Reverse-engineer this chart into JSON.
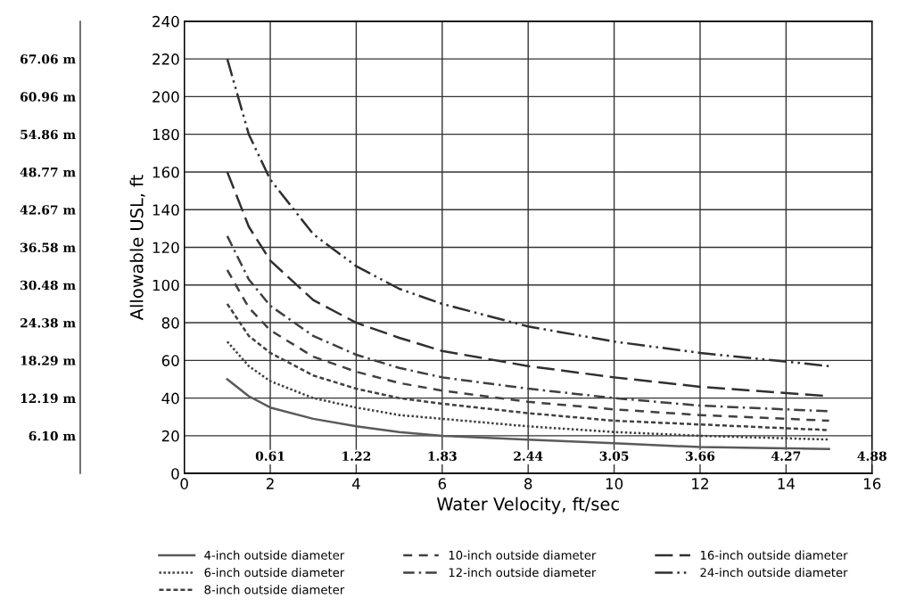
{
  "chart_data": {
    "type": "line",
    "xlabel": "Water Velocity, ft/sec",
    "ylabel": "Allowable USL, ft",
    "x": [
      1,
      1.5,
      2,
      3,
      4,
      5,
      6,
      8,
      10,
      12,
      15
    ],
    "series": [
      {
        "name": "4-inch outside diameter",
        "color": "#5a5a5a",
        "line_style": "solid",
        "values": [
          50,
          41,
          35,
          29,
          25,
          22,
          20,
          18,
          16,
          14,
          13
        ]
      },
      {
        "name": "6-inch outside diameter",
        "color": "#404040",
        "line_style": "dotted",
        "values": [
          70,
          57,
          49,
          40,
          35,
          31,
          29,
          25,
          22,
          20,
          18
        ]
      },
      {
        "name": "8-inch outside diameter",
        "color": "#404040",
        "line_style": "shortdash",
        "values": [
          90,
          73,
          64,
          52,
          45,
          40,
          37,
          32,
          28,
          26,
          23
        ]
      },
      {
        "name": "10-inch outside diameter",
        "color": "#404040",
        "line_style": "dashed",
        "values": [
          108,
          88,
          76,
          62,
          54,
          48,
          44,
          38,
          34,
          31,
          28
        ]
      },
      {
        "name": "12-inch outside diameter",
        "color": "#404040",
        "line_style": "dashdot",
        "values": [
          126,
          103,
          89,
          73,
          63,
          56,
          51,
          45,
          40,
          36,
          33
        ]
      },
      {
        "name": "16-inch outside diameter",
        "color": "#303030",
        "line_style": "longdash",
        "values": [
          160,
          131,
          113,
          92,
          80,
          72,
          65,
          57,
          51,
          46,
          41
        ]
      },
      {
        "name": "24-inch outside diameter",
        "color": "#303030",
        "line_style": "dashdotdot",
        "values": [
          220,
          180,
          156,
          127,
          110,
          98,
          90,
          78,
          70,
          64,
          57
        ]
      }
    ],
    "xlim": [
      0,
      16
    ],
    "xticks": [
      0,
      2,
      4,
      6,
      8,
      10,
      12,
      14,
      16
    ],
    "ylim": [
      0,
      240
    ],
    "yticks": [
      0,
      20,
      40,
      60,
      80,
      100,
      120,
      140,
      160,
      180,
      200,
      220,
      240
    ],
    "y2lim": [
      0,
      73.15
    ],
    "y2ticks": [
      {
        "value": 6.1,
        "label": "6.10 m"
      },
      {
        "value": 12.19,
        "label": "12.19 m"
      },
      {
        "value": 18.29,
        "label": "18.29 m"
      },
      {
        "value": 24.38,
        "label": "24.38 m"
      },
      {
        "value": 30.48,
        "label": "30.48 m"
      },
      {
        "value": 36.58,
        "label": "36.58 m"
      },
      {
        "value": 42.67,
        "label": "42.67 m"
      },
      {
        "value": 48.77,
        "label": "48.77 m"
      },
      {
        "value": 54.86,
        "label": "54.86 m"
      },
      {
        "value": 60.96,
        "label": "60.96 m"
      },
      {
        "value": 67.06,
        "label": "67.06 m"
      }
    ],
    "x2lim": [
      0,
      4.88
    ],
    "x2ticks": [
      0.61,
      1.22,
      1.83,
      2.44,
      3.05,
      3.66,
      4.27,
      4.88
    ],
    "grid": true,
    "legend": "bottom"
  }
}
